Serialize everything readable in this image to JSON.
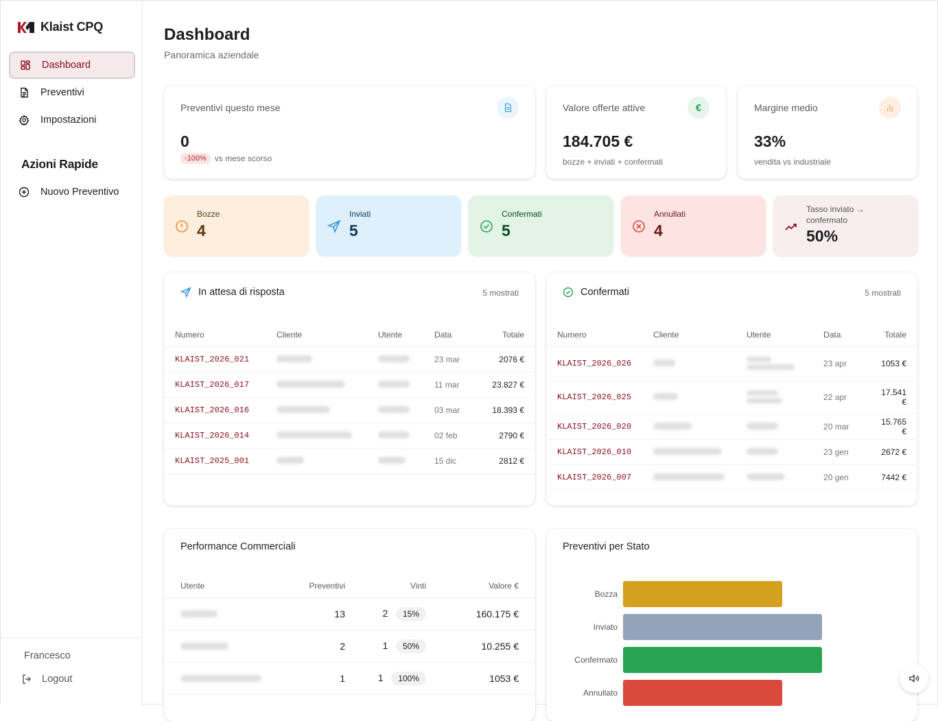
{
  "app": {
    "name": "Klaist CPQ"
  },
  "sidebar": {
    "items": [
      {
        "label": "Dashboard",
        "icon": "dashboard-grid-icon",
        "active": true
      },
      {
        "label": "Preventivi",
        "icon": "document-icon"
      },
      {
        "label": "Impostazioni",
        "icon": "gear-icon"
      }
    ],
    "quick_title": "Azioni Rapide",
    "quick_items": [
      {
        "label": "Nuovo Preventivo",
        "icon": "plus-circle-icon"
      }
    ],
    "user": "Francesco",
    "logout": "Logout"
  },
  "header": {
    "title": "Dashboard",
    "subtitle": "Panoramica aziendale"
  },
  "kpis": [
    {
      "label": "Preventivi questo mese",
      "value": "0",
      "badge": "-100%",
      "sub": "vs mese scorso",
      "icon": "document-icon",
      "color": "#eaf6fd"
    },
    {
      "label": "Valore offerte attive",
      "value": "184.705 €",
      "sub": "bozze + inviati + confermati",
      "icon": "euro-icon",
      "color": "#e6f6ec"
    },
    {
      "label": "Margine medio",
      "value": "33%",
      "sub": "vendita vs industriale",
      "icon": "bar-chart-icon",
      "color": "#fdf0e3"
    }
  ],
  "stats": [
    {
      "label": "Bozze",
      "value": "4",
      "icon": "alert-circle-icon",
      "bg": "#fdeedd",
      "fg": "#5a3a10",
      "accent": "#e0922e"
    },
    {
      "label": "Inviati",
      "value": "5",
      "icon": "send-icon",
      "bg": "#ddf0fb",
      "fg": "#0f3a55",
      "accent": "#3b9cd9"
    },
    {
      "label": "Confermati",
      "value": "5",
      "icon": "check-circle-icon",
      "bg": "#e1f4e6",
      "fg": "#104a22",
      "accent": "#2aa35a"
    },
    {
      "label": "Annullati",
      "value": "4",
      "icon": "x-circle-icon",
      "bg": "#fde4e2",
      "fg": "#6a1a16",
      "accent": "#d84a3c"
    },
    {
      "label": "Tasso inviato → confermato",
      "label1": "Tasso inviato →",
      "label2": "confermato",
      "value": "50%",
      "icon": "trending-up-icon",
      "bg": "#f8eeee",
      "fg": "#1d1d1f",
      "accent": "#8b1020"
    }
  ],
  "pending": {
    "title": "In attesa di risposta",
    "count": "5 mostrati",
    "columns": [
      "Numero",
      "Cliente",
      "Utente",
      "Data",
      "Totale"
    ],
    "rows": [
      {
        "numero": "KLAIST_2026_021",
        "data": "23 mar",
        "totale": "2076 €"
      },
      {
        "numero": "KLAIST_2026_017",
        "data": "11 mar",
        "totale": "23.827 €"
      },
      {
        "numero": "KLAIST_2026_016",
        "data": "03 mar",
        "totale": "18.393 €"
      },
      {
        "numero": "KLAIST_2026_014",
        "data": "02 feb",
        "totale": "2790 €"
      },
      {
        "numero": "KLAIST_2025_001",
        "data": "15 dic",
        "totale": "2812 €"
      }
    ]
  },
  "confirmed": {
    "title": "Confermati",
    "count": "5 mostrati",
    "columns": [
      "Numero",
      "Cliente",
      "Utente",
      "Data",
      "Totale"
    ],
    "rows": [
      {
        "numero": "KLAIST_2026_026",
        "data": "23 apr",
        "totale": "1053 €"
      },
      {
        "numero": "KLAIST_2026_025",
        "data": "22 apr",
        "totale": "17.541 €"
      },
      {
        "numero": "KLAIST_2026_020",
        "data": "20 mar",
        "totale": "15.765 €"
      },
      {
        "numero": "KLAIST_2026_010",
        "data": "23 gen",
        "totale": "2672 €"
      },
      {
        "numero": "KLAIST_2026_007",
        "data": "20 gen",
        "totale": "7442 €"
      }
    ]
  },
  "performance": {
    "title": "Performance Commerciali",
    "columns": [
      "Utente",
      "Preventivi",
      "Vinti",
      "Valore €"
    ],
    "rows": [
      {
        "preventivi": "13",
        "vinti": "2",
        "pct": "15%",
        "valore": "160.175 €"
      },
      {
        "preventivi": "2",
        "vinti": "1",
        "pct": "50%",
        "valore": "10.255 €"
      },
      {
        "preventivi": "1",
        "vinti": "1",
        "pct": "100%",
        "valore": "1053 €"
      }
    ]
  },
  "chart_data": {
    "type": "bar",
    "orientation": "horizontal",
    "title": "Preventivi per Stato",
    "categories": [
      "Bozza",
      "Inviato",
      "Confermato",
      "Annullato"
    ],
    "values": [
      4,
      5,
      5,
      4
    ],
    "colors": [
      "#d4a11f",
      "#93a3ba",
      "#27a352",
      "#d94a3d"
    ],
    "xlim": [
      0,
      5
    ]
  }
}
